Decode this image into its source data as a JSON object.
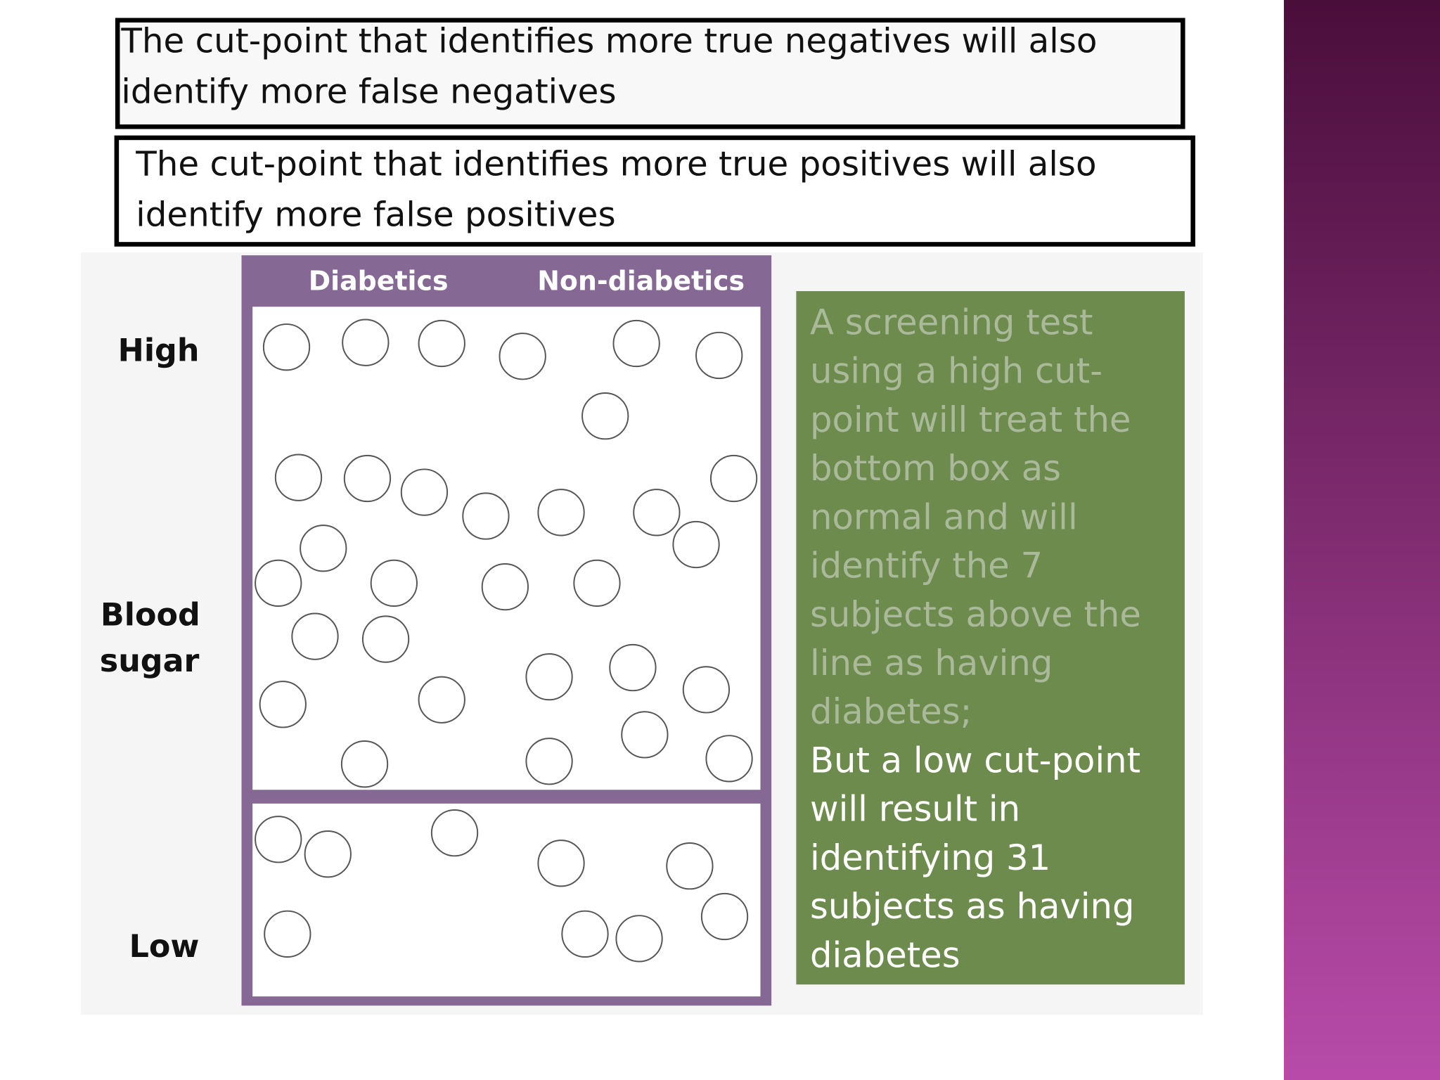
{
  "statements": [
    {
      "lines": [
        "The cut-point that identifies more true negatives will also",
        "identify more false negatives"
      ]
    },
    {
      "lines": [
        "The cut-point that identifies more true positives will also",
        "identify more false positives"
      ]
    }
  ],
  "figure": {
    "columns": [
      "Diabetics",
      "Non-diabetics"
    ],
    "row_labels": {
      "high": "High",
      "middle": [
        "Blood",
        "sugar"
      ],
      "low": "Low"
    }
  },
  "note": {
    "high_cut_lines": [
      "A screening test",
      "using a high cut-",
      "point will treat the",
      "bottom box as",
      "normal and will",
      "identify the 7",
      "subjects above the",
      "line as having",
      "diabetes;"
    ],
    "low_cut_lines": [
      "But a low cut-point",
      "will result in",
      "identifying 31",
      "subjects as having",
      "diabetes"
    ]
  }
}
